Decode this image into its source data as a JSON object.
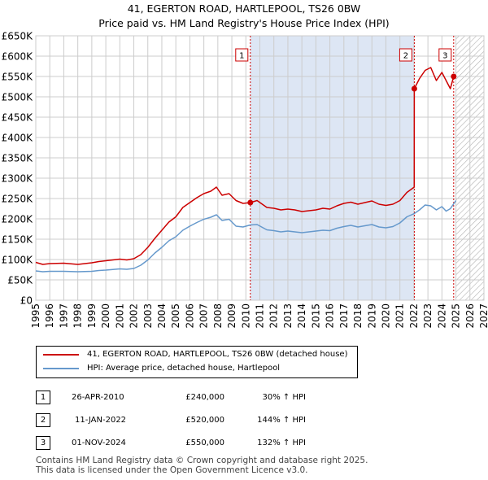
{
  "title": {
    "line1": "41, EGERTON ROAD, HARTLEPOOL, TS26 0BW",
    "line2": "Price paid vs. HM Land Registry's House Price Index (HPI)"
  },
  "colors": {
    "price_paid": "#cc0000",
    "hpi": "#6699cc",
    "shade": "#dde6f4",
    "marker_line": "#cc0000"
  },
  "chart_data": {
    "type": "line",
    "title": "Price paid vs. HM Land Registry's House Price Index (HPI)",
    "xlabel": "",
    "ylabel": "",
    "x_range": [
      1995,
      2027
    ],
    "ylim": [
      0,
      650000
    ],
    "y_ticks": [
      0,
      50000,
      100000,
      150000,
      200000,
      250000,
      300000,
      350000,
      400000,
      450000,
      500000,
      550000,
      600000,
      650000
    ],
    "y_tick_labels": [
      "£0",
      "£50K",
      "£100K",
      "£150K",
      "£200K",
      "£250K",
      "£300K",
      "£350K",
      "£400K",
      "£450K",
      "£500K",
      "£550K",
      "£600K",
      "£650K"
    ],
    "x_ticks": [
      1995,
      1996,
      1997,
      1998,
      1999,
      2000,
      2001,
      2002,
      2003,
      2004,
      2005,
      2006,
      2007,
      2008,
      2009,
      2010,
      2011,
      2012,
      2013,
      2014,
      2015,
      2016,
      2017,
      2018,
      2019,
      2020,
      2021,
      2022,
      2023,
      2024,
      2025,
      2026,
      2027
    ],
    "x_tick_labels": [
      "1995",
      "1996",
      "1997",
      "1998",
      "1999",
      "2000",
      "2001",
      "2002",
      "2003",
      "2004",
      "2005",
      "2006",
      "2007",
      "2008",
      "2009",
      "2010",
      "2011",
      "2012",
      "2013",
      "2014",
      "2015",
      "2016",
      "2017",
      "2018",
      "2019",
      "2020",
      "2021",
      "2022",
      "2023",
      "2024",
      "2025",
      "2026",
      "2027"
    ],
    "grid": true,
    "series": [
      {
        "name": "41, EGERTON ROAD, HARTLEPOOL, TS26 0BW (detached house)",
        "x": [
          1995,
          1995.5,
          1996,
          1997,
          1998,
          1999,
          1999.5,
          2000,
          2001,
          2001.5,
          2002,
          2002.5,
          2003,
          2003.5,
          2004,
          2004.5,
          2005,
          2005.5,
          2006,
          2006.5,
          2007,
          2007.5,
          2007.9,
          2008.3,
          2008.8,
          2009.3,
          2009.8,
          2010.32,
          2010.8,
          2011.5,
          2012,
          2012.5,
          2013,
          2013.5,
          2014,
          2014.5,
          2015,
          2015.5,
          2016,
          2016.5,
          2017,
          2017.5,
          2018,
          2018.5,
          2019,
          2019.5,
          2020,
          2020.5,
          2021,
          2021.5,
          2022.02,
          2022.03,
          2022.4,
          2022.8,
          2023.2,
          2023.6,
          2024,
          2024.3,
          2024.6,
          2024.84,
          2025.0
        ],
        "values": [
          93000,
          88000,
          90000,
          91000,
          88000,
          92000,
          95000,
          97000,
          101000,
          99000,
          102000,
          112000,
          130000,
          152000,
          172000,
          192000,
          205000,
          228000,
          240000,
          252000,
          262000,
          268000,
          278000,
          258000,
          262000,
          245000,
          238000,
          240000,
          245000,
          228000,
          226000,
          222000,
          224000,
          222000,
          218000,
          220000,
          222000,
          226000,
          224000,
          232000,
          238000,
          241000,
          236000,
          240000,
          244000,
          236000,
          233000,
          236000,
          245000,
          265000,
          278000,
          520000,
          545000,
          565000,
          572000,
          540000,
          560000,
          540000,
          520000,
          550000,
          550000
        ]
      },
      {
        "name": "HPI: Average price, detached house, Hartlepool",
        "x": [
          1995,
          1995.5,
          1996,
          1997,
          1998,
          1999,
          1999.5,
          2000,
          2001,
          2001.5,
          2002,
          2002.5,
          2003,
          2003.5,
          2004,
          2004.5,
          2005,
          2005.5,
          2006,
          2006.5,
          2007,
          2007.5,
          2007.9,
          2008.3,
          2008.8,
          2009.3,
          2009.8,
          2010.32,
          2010.8,
          2011.5,
          2012,
          2012.5,
          2013,
          2013.5,
          2014,
          2014.5,
          2015,
          2015.5,
          2016,
          2016.5,
          2017,
          2017.5,
          2018,
          2018.5,
          2019,
          2019.5,
          2020,
          2020.5,
          2021,
          2021.5,
          2022.02,
          2022.4,
          2022.8,
          2023.2,
          2023.6,
          2024,
          2024.3,
          2024.6,
          2024.84,
          2025.0
        ],
        "values": [
          72000,
          70000,
          71000,
          71000,
          70000,
          71000,
          73000,
          74000,
          77000,
          76000,
          78000,
          86000,
          99000,
          116000,
          130000,
          146000,
          156000,
          172000,
          182000,
          191000,
          199000,
          204000,
          210000,
          196000,
          199000,
          182000,
          180000,
          185000,
          186000,
          173000,
          171000,
          168000,
          170000,
          168000,
          166000,
          168000,
          170000,
          172000,
          171000,
          177000,
          181000,
          184000,
          180000,
          183000,
          186000,
          180000,
          178000,
          181000,
          190000,
          205000,
          213000,
          222000,
          234000,
          232000,
          222000,
          230000,
          219000,
          225000,
          237000,
          245000
        ]
      }
    ],
    "sales": [
      {
        "label": "1",
        "x": 2010.32,
        "value": 240000
      },
      {
        "label": "2",
        "x": 2022.03,
        "value": 520000
      },
      {
        "label": "3",
        "x": 2024.84,
        "value": 550000
      }
    ],
    "shaded_region": [
      2010.32,
      2022.03
    ],
    "hatched_region": [
      2025.0,
      2027
    ]
  },
  "legend": {
    "items": [
      {
        "label": "41, EGERTON ROAD, HARTLEPOOL, TS26 0BW (detached house)"
      },
      {
        "label": "HPI: Average price, detached house, Hartlepool"
      }
    ]
  },
  "transactions": [
    {
      "num": "1",
      "date": "26-APR-2010",
      "price": "£240,000",
      "hpi": "30% ↑ HPI"
    },
    {
      "num": "2",
      "date": "11-JAN-2022",
      "price": "£520,000",
      "hpi": "144% ↑ HPI"
    },
    {
      "num": "3",
      "date": "01-NOV-2024",
      "price": "£550,000",
      "hpi": "132% ↑ HPI"
    }
  ],
  "footer": {
    "line1": "Contains HM Land Registry data © Crown copyright and database right 2025.",
    "line2": "This data is licensed under the Open Government Licence v3.0."
  }
}
